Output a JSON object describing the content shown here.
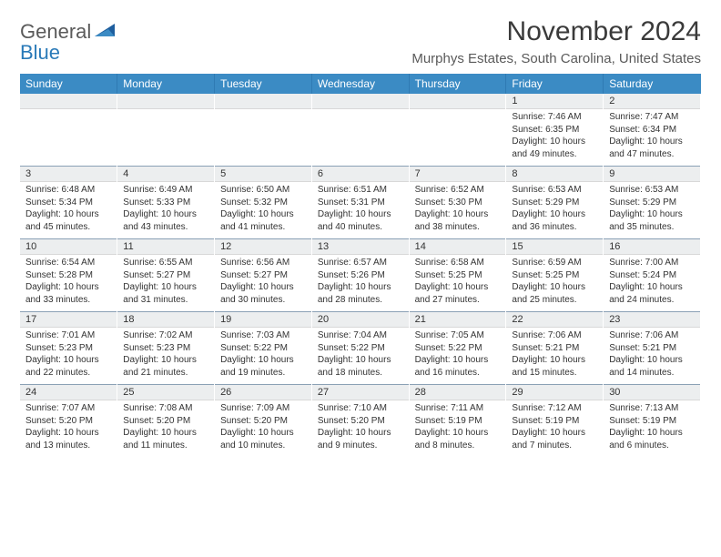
{
  "brand": {
    "word1": "General",
    "word2": "Blue"
  },
  "title": "November 2024",
  "location": "Murphys Estates, South Carolina, United States",
  "colors": {
    "header_bg": "#3b8bc4",
    "header_text": "#ffffff",
    "daynum_bg": "#eceeef",
    "rule": "#6b88a0",
    "logo_gray": "#5a5a5a",
    "logo_blue": "#2a7ab8"
  },
  "day_headers": [
    "Sunday",
    "Monday",
    "Tuesday",
    "Wednesday",
    "Thursday",
    "Friday",
    "Saturday"
  ],
  "weeks": [
    [
      {
        "n": "",
        "sr": "",
        "ss": "",
        "dl": ""
      },
      {
        "n": "",
        "sr": "",
        "ss": "",
        "dl": ""
      },
      {
        "n": "",
        "sr": "",
        "ss": "",
        "dl": ""
      },
      {
        "n": "",
        "sr": "",
        "ss": "",
        "dl": ""
      },
      {
        "n": "",
        "sr": "",
        "ss": "",
        "dl": ""
      },
      {
        "n": "1",
        "sr": "Sunrise: 7:46 AM",
        "ss": "Sunset: 6:35 PM",
        "dl": "Daylight: 10 hours and 49 minutes."
      },
      {
        "n": "2",
        "sr": "Sunrise: 7:47 AM",
        "ss": "Sunset: 6:34 PM",
        "dl": "Daylight: 10 hours and 47 minutes."
      }
    ],
    [
      {
        "n": "3",
        "sr": "Sunrise: 6:48 AM",
        "ss": "Sunset: 5:34 PM",
        "dl": "Daylight: 10 hours and 45 minutes."
      },
      {
        "n": "4",
        "sr": "Sunrise: 6:49 AM",
        "ss": "Sunset: 5:33 PM",
        "dl": "Daylight: 10 hours and 43 minutes."
      },
      {
        "n": "5",
        "sr": "Sunrise: 6:50 AM",
        "ss": "Sunset: 5:32 PM",
        "dl": "Daylight: 10 hours and 41 minutes."
      },
      {
        "n": "6",
        "sr": "Sunrise: 6:51 AM",
        "ss": "Sunset: 5:31 PM",
        "dl": "Daylight: 10 hours and 40 minutes."
      },
      {
        "n": "7",
        "sr": "Sunrise: 6:52 AM",
        "ss": "Sunset: 5:30 PM",
        "dl": "Daylight: 10 hours and 38 minutes."
      },
      {
        "n": "8",
        "sr": "Sunrise: 6:53 AM",
        "ss": "Sunset: 5:29 PM",
        "dl": "Daylight: 10 hours and 36 minutes."
      },
      {
        "n": "9",
        "sr": "Sunrise: 6:53 AM",
        "ss": "Sunset: 5:29 PM",
        "dl": "Daylight: 10 hours and 35 minutes."
      }
    ],
    [
      {
        "n": "10",
        "sr": "Sunrise: 6:54 AM",
        "ss": "Sunset: 5:28 PM",
        "dl": "Daylight: 10 hours and 33 minutes."
      },
      {
        "n": "11",
        "sr": "Sunrise: 6:55 AM",
        "ss": "Sunset: 5:27 PM",
        "dl": "Daylight: 10 hours and 31 minutes."
      },
      {
        "n": "12",
        "sr": "Sunrise: 6:56 AM",
        "ss": "Sunset: 5:27 PM",
        "dl": "Daylight: 10 hours and 30 minutes."
      },
      {
        "n": "13",
        "sr": "Sunrise: 6:57 AM",
        "ss": "Sunset: 5:26 PM",
        "dl": "Daylight: 10 hours and 28 minutes."
      },
      {
        "n": "14",
        "sr": "Sunrise: 6:58 AM",
        "ss": "Sunset: 5:25 PM",
        "dl": "Daylight: 10 hours and 27 minutes."
      },
      {
        "n": "15",
        "sr": "Sunrise: 6:59 AM",
        "ss": "Sunset: 5:25 PM",
        "dl": "Daylight: 10 hours and 25 minutes."
      },
      {
        "n": "16",
        "sr": "Sunrise: 7:00 AM",
        "ss": "Sunset: 5:24 PM",
        "dl": "Daylight: 10 hours and 24 minutes."
      }
    ],
    [
      {
        "n": "17",
        "sr": "Sunrise: 7:01 AM",
        "ss": "Sunset: 5:23 PM",
        "dl": "Daylight: 10 hours and 22 minutes."
      },
      {
        "n": "18",
        "sr": "Sunrise: 7:02 AM",
        "ss": "Sunset: 5:23 PM",
        "dl": "Daylight: 10 hours and 21 minutes."
      },
      {
        "n": "19",
        "sr": "Sunrise: 7:03 AM",
        "ss": "Sunset: 5:22 PM",
        "dl": "Daylight: 10 hours and 19 minutes."
      },
      {
        "n": "20",
        "sr": "Sunrise: 7:04 AM",
        "ss": "Sunset: 5:22 PM",
        "dl": "Daylight: 10 hours and 18 minutes."
      },
      {
        "n": "21",
        "sr": "Sunrise: 7:05 AM",
        "ss": "Sunset: 5:22 PM",
        "dl": "Daylight: 10 hours and 16 minutes."
      },
      {
        "n": "22",
        "sr": "Sunrise: 7:06 AM",
        "ss": "Sunset: 5:21 PM",
        "dl": "Daylight: 10 hours and 15 minutes."
      },
      {
        "n": "23",
        "sr": "Sunrise: 7:06 AM",
        "ss": "Sunset: 5:21 PM",
        "dl": "Daylight: 10 hours and 14 minutes."
      }
    ],
    [
      {
        "n": "24",
        "sr": "Sunrise: 7:07 AM",
        "ss": "Sunset: 5:20 PM",
        "dl": "Daylight: 10 hours and 13 minutes."
      },
      {
        "n": "25",
        "sr": "Sunrise: 7:08 AM",
        "ss": "Sunset: 5:20 PM",
        "dl": "Daylight: 10 hours and 11 minutes."
      },
      {
        "n": "26",
        "sr": "Sunrise: 7:09 AM",
        "ss": "Sunset: 5:20 PM",
        "dl": "Daylight: 10 hours and 10 minutes."
      },
      {
        "n": "27",
        "sr": "Sunrise: 7:10 AM",
        "ss": "Sunset: 5:20 PM",
        "dl": "Daylight: 10 hours and 9 minutes."
      },
      {
        "n": "28",
        "sr": "Sunrise: 7:11 AM",
        "ss": "Sunset: 5:19 PM",
        "dl": "Daylight: 10 hours and 8 minutes."
      },
      {
        "n": "29",
        "sr": "Sunrise: 7:12 AM",
        "ss": "Sunset: 5:19 PM",
        "dl": "Daylight: 10 hours and 7 minutes."
      },
      {
        "n": "30",
        "sr": "Sunrise: 7:13 AM",
        "ss": "Sunset: 5:19 PM",
        "dl": "Daylight: 10 hours and 6 minutes."
      }
    ]
  ]
}
